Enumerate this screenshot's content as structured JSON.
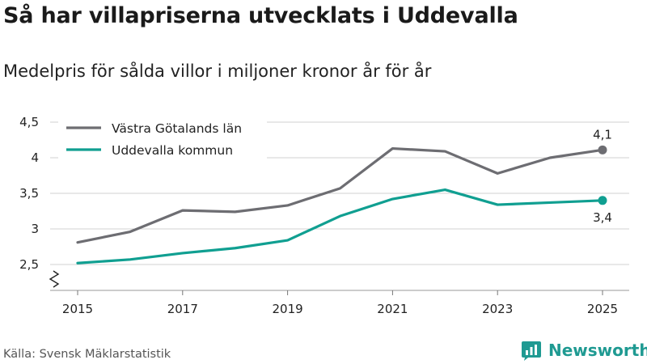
{
  "header": {
    "title": "Så har villapriserna utvecklats i Uddevalla",
    "subtitle": "Medelpris för sålda villor i miljoner kronor år för år"
  },
  "footer": {
    "source": "Källa: Svensk Mäklarstatistik",
    "brand": "Newsworthy"
  },
  "colors": {
    "vastra": "#6d6d72",
    "uddevalla": "#109f91",
    "grid": "#d0d0d0",
    "brand": "#1f9a92"
  },
  "chart_data": {
    "type": "line",
    "title": "Så har villapriserna utvecklats i Uddevalla",
    "subtitle": "Medelpris för sålda villor i miljoner kronor år för år",
    "xlabel": "",
    "ylabel": "",
    "x": [
      2015,
      2016,
      2017,
      2018,
      2019,
      2020,
      2021,
      2022,
      2023,
      2024,
      2025
    ],
    "x_ticks": [
      "2015",
      "2017",
      "2019",
      "2021",
      "2023",
      "2025"
    ],
    "y_ticks": [
      "2,5",
      "3",
      "3,5",
      "4",
      "4,5"
    ],
    "y_tick_values": [
      2.5,
      3,
      3.5,
      4,
      4.5
    ],
    "ylim": [
      2.3,
      4.5
    ],
    "xlim": [
      2014.5,
      2025.5
    ],
    "grid": true,
    "axis_break": true,
    "legend_position": "top-left",
    "series": [
      {
        "name": "Västra Götalands län",
        "color": "#6d6d72",
        "values": [
          2.81,
          2.96,
          3.26,
          3.24,
          3.33,
          3.57,
          4.13,
          4.09,
          3.78,
          4.0,
          4.11
        ],
        "end_label": "4,1",
        "end_label_position": "above"
      },
      {
        "name": "Uddevalla kommun",
        "color": "#109f91",
        "values": [
          2.52,
          2.57,
          2.66,
          2.73,
          2.84,
          3.18,
          3.42,
          3.55,
          3.34,
          3.37,
          3.4
        ],
        "end_label": "3,4",
        "end_label_position": "below"
      }
    ]
  }
}
